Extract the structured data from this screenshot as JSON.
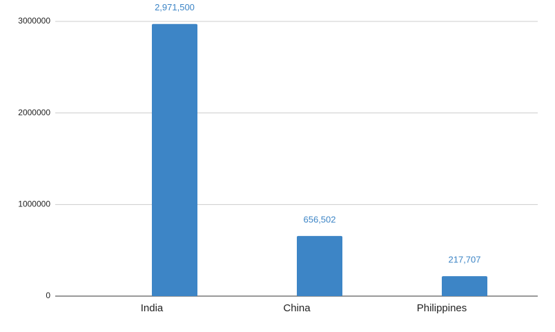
{
  "chart_data": {
    "type": "bar",
    "categories": [
      "India",
      "China",
      "Philippines"
    ],
    "values": [
      2971500,
      656502,
      217707
    ],
    "value_labels": [
      "2,971,500",
      "656,502",
      "217,707"
    ],
    "color": "#3d85c6",
    "ylim": [
      0,
      3000000
    ],
    "yticks": [
      0,
      1000000,
      2000000,
      3000000
    ],
    "grid": true
  }
}
